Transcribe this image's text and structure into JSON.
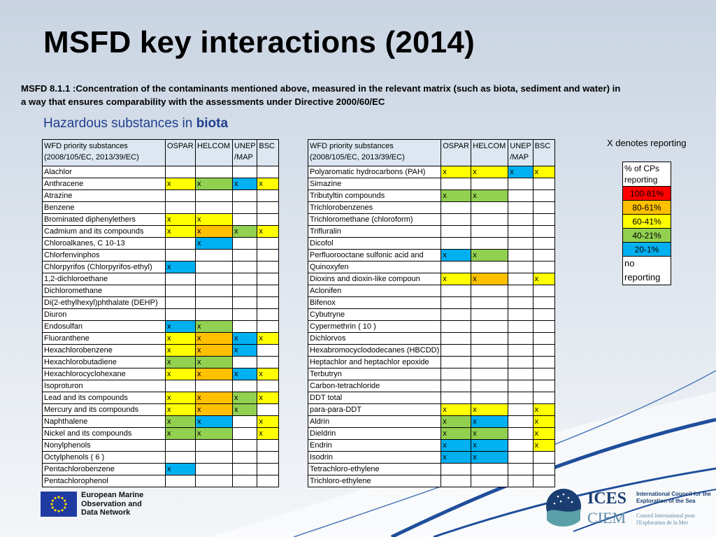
{
  "title": "MSFD key interactions (2014)",
  "subtitle": "MSFD 8.1.1 :Concentration of the contaminants mentioned above, measured in the relevant matrix (such as biota, sediment and water) in a way that ensures comparability with the assessments under Directive 2000/60/EC",
  "heading": {
    "prefix": "Hazardous substances in ",
    "bold": "biota"
  },
  "table_headers": [
    "WFD priority substances (2008/105/EC, 2013/39/EC)",
    "OSPAR",
    "HELCOM",
    "UNEP /MAP",
    "BSC"
  ],
  "legend": {
    "title": "X denotes reporting",
    "header": "% of CPs reporting",
    "ranges": [
      {
        "label": "100-81%",
        "color": "#ff0000"
      },
      {
        "label": "80-61%",
        "color": "#ffc000"
      },
      {
        "label": "60-41%",
        "color": "#ffff00"
      },
      {
        "label": "40-21%",
        "color": "#92d050"
      },
      {
        "label": "20-1%",
        "color": "#00b0f0"
      }
    ],
    "no_reporting": "no reporting"
  },
  "colors": {
    "yellow": "#ffff00",
    "green": "#92d050",
    "orange": "#ffc000",
    "blue": "#00b0f0",
    "red": "#ff0000"
  },
  "table1": [
    {
      "name": "Alachlor",
      "cells": [
        "",
        "",
        "",
        ""
      ]
    },
    {
      "name": "Anthracene",
      "cells": [
        "yellow",
        "green",
        "blue",
        "yellow"
      ]
    },
    {
      "name": "Atrazine",
      "cells": [
        "",
        "",
        "",
        ""
      ]
    },
    {
      "name": "Benzene",
      "cells": [
        "",
        "",
        "",
        ""
      ]
    },
    {
      "name": "Brominated diphenylethers",
      "cells": [
        "yellow",
        "yellow",
        "",
        ""
      ]
    },
    {
      "name": "Cadmium and its compounds",
      "cells": [
        "yellow",
        "orange",
        "green",
        "yellow"
      ]
    },
    {
      "name": "Chloroalkanes, C 10-13",
      "cells": [
        "",
        "blue",
        "",
        ""
      ]
    },
    {
      "name": "Chlorfenvinphos",
      "cells": [
        "",
        "",
        "",
        ""
      ]
    },
    {
      "name": "Chlorpyrifos (Chlorpyrifos-ethyl)",
      "cells": [
        "blue",
        "",
        "",
        ""
      ]
    },
    {
      "name": "1,2-dichloroethane",
      "cells": [
        "",
        "",
        "",
        ""
      ]
    },
    {
      "name": "Dichloromethane",
      "cells": [
        "",
        "",
        "",
        ""
      ]
    },
    {
      "name": "Di(2-ethylhexyl)phthalate (DEHP)",
      "cells": [
        "",
        "",
        "",
        ""
      ]
    },
    {
      "name": "Diuron",
      "cells": [
        "",
        "",
        "",
        ""
      ]
    },
    {
      "name": "Endosulfan",
      "cells": [
        "blue",
        "green",
        "",
        ""
      ]
    },
    {
      "name": "Fluoranthene",
      "cells": [
        "yellow",
        "orange",
        "blue",
        "yellow"
      ]
    },
    {
      "name": "Hexachlorobenzene",
      "cells": [
        "yellow",
        "orange",
        "blue",
        ""
      ]
    },
    {
      "name": "Hexachlorobutadiene",
      "cells": [
        "green",
        "green",
        "",
        ""
      ]
    },
    {
      "name": "Hexachlorocyclohexane",
      "cells": [
        "yellow",
        "orange",
        "blue",
        "yellow"
      ]
    },
    {
      "name": "Isoproturon",
      "cells": [
        "",
        "",
        "",
        ""
      ]
    },
    {
      "name": "Lead and its compounds",
      "cells": [
        "yellow",
        "orange",
        "green",
        "yellow"
      ]
    },
    {
      "name": "Mercury and its compounds",
      "cells": [
        "yellow",
        "orange",
        "green",
        ""
      ]
    },
    {
      "name": "Naphthalene",
      "cells": [
        "green",
        "blue",
        "",
        "yellow"
      ]
    },
    {
      "name": "Nickel and its compounds",
      "cells": [
        "green",
        "green",
        "",
        "yellow"
      ]
    },
    {
      "name": "Nonylphenols",
      "cells": [
        "",
        "",
        "",
        ""
      ]
    },
    {
      "name": "Octylphenols ( 6 )",
      "cells": [
        "",
        "",
        "",
        ""
      ]
    },
    {
      "name": "Pentachlorobenzene",
      "cells": [
        "blue",
        "",
        "",
        ""
      ]
    },
    {
      "name": "Pentachlorophenol",
      "cells": [
        "",
        "",
        "",
        ""
      ]
    }
  ],
  "table2": [
    {
      "name": "Polyaromatic hydrocarbons (PAH)",
      "cells": [
        "yellow",
        "yellow",
        "blue",
        "yellow"
      ]
    },
    {
      "name": "Simazine",
      "cells": [
        "",
        "",
        "",
        ""
      ]
    },
    {
      "name": "Tributyltin compounds",
      "cells": [
        "green",
        "green",
        "",
        ""
      ]
    },
    {
      "name": "Trichlorobenzenes",
      "cells": [
        "",
        "",
        "",
        ""
      ]
    },
    {
      "name": "Trichloromethane (chloroform)",
      "cells": [
        "",
        "",
        "",
        ""
      ]
    },
    {
      "name": "Trifluralin",
      "cells": [
        "",
        "",
        "",
        ""
      ]
    },
    {
      "name": "Dicofol",
      "cells": [
        "",
        "",
        "",
        ""
      ]
    },
    {
      "name": "Perfluorooctane sulfonic acid and",
      "cells": [
        "blue",
        "green",
        "",
        ""
      ]
    },
    {
      "name": "Quinoxyfen",
      "cells": [
        "",
        "",
        "",
        ""
      ]
    },
    {
      "name": "Dioxins and dioxin-like compoun",
      "cells": [
        "yellow",
        "orange",
        "",
        "yellow"
      ]
    },
    {
      "name": "Aclonifen",
      "cells": [
        "",
        "",
        "",
        ""
      ]
    },
    {
      "name": "Bifenox",
      "cells": [
        "",
        "",
        "",
        ""
      ]
    },
    {
      "name": "Cybutryne",
      "cells": [
        "",
        "",
        "",
        ""
      ]
    },
    {
      "name": "Cypermethrin ( 10 )",
      "cells": [
        "",
        "",
        "",
        ""
      ]
    },
    {
      "name": "Dichlorvos",
      "cells": [
        "",
        "",
        "",
        ""
      ]
    },
    {
      "name": "Hexabromocyclododecanes (HBCDD)",
      "cells": [
        "",
        "",
        "",
        ""
      ]
    },
    {
      "name": "Heptachlor and heptachlor epoxide",
      "cells": [
        "",
        "",
        "",
        ""
      ]
    },
    {
      "name": "Terbutryn",
      "cells": [
        "",
        "",
        "",
        ""
      ]
    },
    {
      "name": "Carbon-tetrachloride",
      "cells": [
        "",
        "",
        "",
        ""
      ]
    },
    {
      "name": " DDT total",
      "cells": [
        "",
        "",
        "",
        ""
      ]
    },
    {
      "name": " para-para-DDT",
      "cells": [
        "yellow",
        "yellow",
        "",
        "yellow"
      ]
    },
    {
      "name": " Aldrin",
      "cells": [
        "green",
        "blue",
        "",
        "yellow"
      ]
    },
    {
      "name": " Dieldrin",
      "cells": [
        "green",
        "green",
        "",
        "yellow"
      ]
    },
    {
      "name": " Endrin",
      "cells": [
        "blue",
        "blue",
        "",
        "yellow"
      ]
    },
    {
      "name": " Isodrin",
      "cells": [
        "blue",
        "blue",
        "",
        ""
      ]
    },
    {
      "name": " Tetrachloro-ethylene",
      "cells": [
        "",
        "",
        "",
        ""
      ]
    },
    {
      "name": "Trichloro-ethylene",
      "cells": [
        "",
        "",
        "",
        ""
      ]
    }
  ],
  "mark": "x",
  "footer": {
    "emodnet": [
      "European Marine",
      "Observation and",
      "Data Network"
    ],
    "ices": "ICES",
    "ciem": "CIEM",
    "ices_en": "International Council for the Exploration of the Sea",
    "ices_fr": "Conseil International pour l'Exploration de la Mer"
  }
}
